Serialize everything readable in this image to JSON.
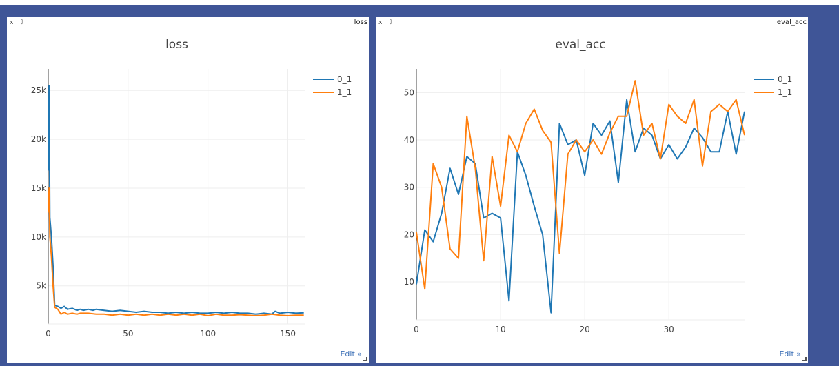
{
  "panes": [
    {
      "tag": "loss",
      "close_glyph": "x",
      "pin_glyph": "⇩",
      "edit_label": "Edit »"
    },
    {
      "tag": "eval_acc",
      "close_glyph": "x",
      "pin_glyph": "⇩",
      "edit_label": "Edit »"
    }
  ],
  "chart_data": [
    {
      "type": "line",
      "title": "loss",
      "xlim": [
        0,
        161
      ],
      "ylim": [
        1100,
        27200
      ],
      "xticks": [
        0,
        50,
        100,
        150
      ],
      "xtick_labels": [
        "0",
        "50",
        "100",
        "150"
      ],
      "yticks": [
        5000,
        10000,
        15000,
        20000,
        25000
      ],
      "ytick_labels": [
        "5k",
        "10k",
        "15k",
        "20k",
        "25k"
      ],
      "grid": true,
      "legend_position": "top-right",
      "series": [
        {
          "name": "0_1",
          "color": "#1f77b4",
          "points": [
            [
              0,
              16800
            ],
            [
              0.5,
              25500
            ],
            [
              1,
              12000
            ],
            [
              2,
              10000
            ],
            [
              3,
              7000
            ],
            [
              4,
              3000
            ],
            [
              6,
              2900
            ],
            [
              8,
              2700
            ],
            [
              10,
              2900
            ],
            [
              12,
              2600
            ],
            [
              15,
              2700
            ],
            [
              18,
              2500
            ],
            [
              20,
              2600
            ],
            [
              22,
              2500
            ],
            [
              25,
              2600
            ],
            [
              28,
              2500
            ],
            [
              30,
              2600
            ],
            [
              35,
              2500
            ],
            [
              40,
              2400
            ],
            [
              45,
              2500
            ],
            [
              50,
              2400
            ],
            [
              55,
              2300
            ],
            [
              60,
              2400
            ],
            [
              65,
              2300
            ],
            [
              70,
              2300
            ],
            [
              75,
              2200
            ],
            [
              80,
              2300
            ],
            [
              85,
              2200
            ],
            [
              90,
              2300
            ],
            [
              95,
              2200
            ],
            [
              100,
              2200
            ],
            [
              105,
              2300
            ],
            [
              110,
              2200
            ],
            [
              115,
              2300
            ],
            [
              120,
              2200
            ],
            [
              125,
              2200
            ],
            [
              130,
              2100
            ],
            [
              135,
              2200
            ],
            [
              140,
              2100
            ],
            [
              142,
              2400
            ],
            [
              145,
              2200
            ],
            [
              150,
              2300
            ],
            [
              155,
              2200
            ],
            [
              160,
              2250
            ]
          ]
        },
        {
          "name": "1_1",
          "color": "#ff7f0e",
          "points": [
            [
              0,
              12500
            ],
            [
              0.5,
              15000
            ],
            [
              1,
              10000
            ],
            [
              2,
              8000
            ],
            [
              3,
              5000
            ],
            [
              4,
              2800
            ],
            [
              6,
              2600
            ],
            [
              8,
              2100
            ],
            [
              10,
              2300
            ],
            [
              12,
              2100
            ],
            [
              15,
              2200
            ],
            [
              18,
              2100
            ],
            [
              20,
              2200
            ],
            [
              25,
              2200
            ],
            [
              30,
              2100
            ],
            [
              35,
              2100
            ],
            [
              40,
              2000
            ],
            [
              45,
              2100
            ],
            [
              50,
              2000
            ],
            [
              55,
              2100
            ],
            [
              60,
              2000
            ],
            [
              65,
              2100
            ],
            [
              70,
              2000
            ],
            [
              75,
              2100
            ],
            [
              80,
              2000
            ],
            [
              85,
              2100
            ],
            [
              90,
              2000
            ],
            [
              95,
              2100
            ],
            [
              100,
              1950
            ],
            [
              105,
              2100
            ],
            [
              110,
              2000
            ],
            [
              115,
              2000
            ],
            [
              120,
              2050
            ],
            [
              125,
              2000
            ],
            [
              130,
              1950
            ],
            [
              135,
              2000
            ],
            [
              140,
              2100
            ],
            [
              145,
              2000
            ],
            [
              150,
              1950
            ],
            [
              155,
              2000
            ],
            [
              160,
              2000
            ]
          ]
        }
      ]
    },
    {
      "type": "line",
      "title": "eval_acc",
      "xlim": [
        0,
        39
      ],
      "ylim": [
        2,
        55
      ],
      "xticks": [
        0,
        10,
        20,
        30
      ],
      "xtick_labels": [
        "0",
        "10",
        "20",
        "30"
      ],
      "yticks": [
        10,
        20,
        30,
        40,
        50
      ],
      "ytick_labels": [
        "10",
        "20",
        "30",
        "40",
        "50"
      ],
      "grid": true,
      "legend_position": "top-right",
      "series": [
        {
          "name": "0_1",
          "color": "#1f77b4",
          "x": [
            0,
            1,
            2,
            3,
            4,
            5,
            6,
            7,
            8,
            9,
            10,
            11,
            12,
            13,
            14,
            15,
            16,
            17,
            18,
            19,
            20,
            21,
            22,
            23,
            24,
            25,
            26,
            27,
            28,
            29,
            30,
            31,
            32,
            33,
            34,
            35,
            36,
            37,
            38,
            39
          ],
          "values": [
            9.5,
            21,
            18.5,
            24.5,
            34,
            28.5,
            36.5,
            35,
            23.5,
            24.5,
            23.5,
            6,
            37.5,
            32.5,
            26,
            20,
            3.5,
            43.5,
            39,
            40,
            32.5,
            43.5,
            41,
            44,
            31,
            48.5,
            37.5,
            42.5,
            41,
            36,
            39,
            36,
            38.5,
            42.5,
            40.5,
            37.5,
            37.5,
            46,
            37,
            46
          ]
        },
        {
          "name": "1_1",
          "color": "#ff7f0e",
          "x": [
            0,
            1,
            2,
            3,
            4,
            5,
            6,
            7,
            8,
            9,
            10,
            11,
            12,
            13,
            14,
            15,
            16,
            17,
            18,
            19,
            20,
            21,
            22,
            23,
            24,
            25,
            26,
            27,
            28,
            29,
            30,
            31,
            32,
            33,
            34,
            35,
            36,
            37,
            38,
            39
          ],
          "values": [
            20.5,
            8.5,
            35,
            30,
            17,
            15,
            45,
            34,
            14.5,
            36.5,
            26,
            41,
            37.5,
            43.5,
            46.5,
            42,
            39.5,
            16,
            37,
            40,
            37.5,
            40,
            37,
            41.5,
            45,
            45,
            52.5,
            41,
            43.5,
            36,
            47.5,
            45,
            43.5,
            48.5,
            34.5,
            46,
            47.5,
            46,
            48.5,
            41
          ]
        }
      ]
    }
  ]
}
